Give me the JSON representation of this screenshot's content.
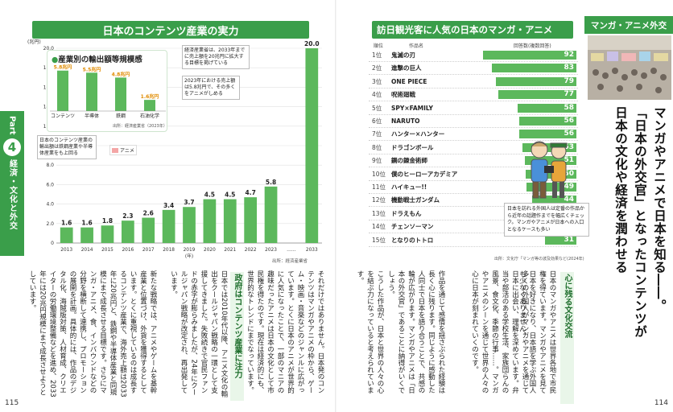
{
  "left_page": {
    "section_title": "日本のコンテンツ産業の実力",
    "part_label": "Part",
    "part_number": "4",
    "part_title": "経済・文化と外交",
    "y_unit": "(兆円)",
    "x_unit": "(年)",
    "source": "出所：経済産業省",
    "annotation_top": "経済産業省は、2033年までに売上額を20兆円に拡大する目標を掲げている",
    "annotation_mid": "2023年における売上額は5.8兆円で、その多くをアニメがしめる",
    "annotation_left": "日本のコンテンツ産業の輸出額は鉄鋼産業や半導体産業をも上回る",
    "legend_anime": "アニメ",
    "inset": {
      "title": "産業別の輸出額等規模感",
      "source": "出所：経済産業省（2023年）",
      "categories": [
        "コンテンツ",
        "半導体",
        "鉄鋼",
        "石油化学"
      ],
      "values_label": [
        "5.8兆円",
        "5.5兆円",
        "4.8兆円",
        "1.6兆円"
      ]
    },
    "subhead": "政府はコンテンツ産業に注力",
    "body_col1": "それだけではありません。日本発のコンテンツはマンガやアニメの枠から、ゲーム・映画・音楽などのジャンルに広がっています。とくに日本のアニメが世界的に人気になったことで、一部のマニアの趣味だったアニメは日本の文化として市民権を得たのです。現在は経済的にも、世界的なトレンドにまでなっています。",
    "body_col2": "日本では2010年代以降、アニメ文化の輸出をクールジャパン戦略の一環として支援してきました。失敗続きで官民ファンドの赤字が膨らみましたが、24年にクールジャパン戦略が改定され、再出発しています。",
    "body_col3": "新たな戦略では、アニメやゲームを基幹産業と位置づけ、外貨を獲得するとしています。とくに重視しているのは成長するコンテンツ産業で、海外売上額は2033年に20兆円と、鉄鋼や半導体産業と同規模にまで成長させる目標です。さらにマンガ・アニメ、食、インバウンドなどの分野を横断して連携し、プロモーションの展開を計画。具体的には、作品のデジタル化、海賊版対策、人材育成、クリエイターの労働環境整備などを進め、2033年には20兆円規模にまで成長させようとしています。",
    "page_number": "115"
  },
  "right_page": {
    "section_title": "訪日観光客に人気の日本のマンガ・アニメ",
    "col_rank": "順位",
    "col_title": "作品名",
    "col_votes": "回答数(複数回答)",
    "source": "出所：文化庁「マンガ等の波及効果など(2024年)",
    "illustration_caption": "日本を訪れる外国人は定番の作品から近年の話題作までを幅広くチェック。マンガやアニメが日本への入口となるケースも多い",
    "category_tab": "マンガ・アニメ外交",
    "headline_1": "マンガやアニメで日本を知る――。",
    "headline_2": "「日本の外交官」となったコンテンツが",
    "headline_3": "日本の文化や経済を潤わせる",
    "subhead": "心に残る文化交流",
    "body_col1": "日本のマンガやアニメは世界各地で市民権を得ています。マンガやアニメを見て日本を好きになり、日本語を学ぶ外国人も少なくありません。",
    "body_col2": "多くの外国人がマンガやアニメを通じて日本に出会い、理解を深めています。弁当や部活のある学校生活、家族団らんの風景、食文化、季節の行事……。マンガやアニメのシーンを通じて世界の人々の心に日本が刻まれていくのです。",
    "body_col3": "作品を通じて感情を揺さぶられた経験は長く心に残ります。同じように感動した人同士で日本を語り合うことで、共感の輪が広がります。マンガやアニメは「日本の外交官」であることに納得がいくでしょう。",
    "body_col4": "こうした作品が、日本と世界の人々の心を結ぶ力になっていると考えられています。",
    "page_number": "114"
  },
  "chart_data": [
    {
      "type": "bar",
      "title": "",
      "categories": [
        "2013",
        "2014",
        "2015",
        "2016",
        "2017",
        "2018",
        "2019",
        "2020",
        "2021",
        "2022",
        "2023",
        "……",
        "2033"
      ],
      "series": [
        {
          "name": "",
          "values": [
            1.6,
            1.6,
            1.8,
            2.3,
            2.6,
            3.4,
            3.7,
            4.5,
            4.5,
            4.7,
            5.8,
            null,
            20.0
          ]
        },
        {
          "name": "アニメ",
          "values": [
            0.3,
            0.4,
            0.6,
            1.0,
            1.2,
            1.6,
            1.7,
            2.0,
            2.1,
            2.4,
            2.9,
            null,
            null
          ]
        }
      ],
      "value_labels": [
        "1.6",
        "1.6",
        "1.8",
        "2.3",
        "2.6",
        "3.4",
        "3.7",
        "4.5",
        "4.5",
        "4.7",
        "5.8",
        "",
        "20.0"
      ],
      "y_ticks": [
        "0",
        "2.0",
        "4.0",
        "6.0",
        "8.0",
        "10.0",
        "12.0",
        "14.0",
        "16.0",
        "18.0",
        "20.0"
      ],
      "ylim": [
        0,
        20
      ],
      "colors": {
        "total": "#5cb85c",
        "anime": "#f4a6a6"
      }
    },
    {
      "type": "bar",
      "title": "",
      "orientation": "horizontal",
      "categories": [
        "鬼滅の刃",
        "進撃の巨人",
        "ONE PIECE",
        "呪術廻戦",
        "SPY×FAMILY",
        "NARUTO",
        "ハンター×ハンター",
        "ドラゴンボール",
        "鋼の錬金術師",
        "僕のヒーローアカデミア",
        "ハイキュー!!",
        "機動戦士ガンダム",
        "ドラえもん",
        "チェンソーマン",
        "となりのトトロ"
      ],
      "ranks": [
        "1位",
        "2位",
        "3位",
        "4位",
        "5位",
        "6位",
        "7位",
        "8位",
        "9位",
        "10位",
        "11位",
        "12位",
        "13位",
        "14位",
        "15位"
      ],
      "values": [
        92,
        83,
        79,
        77,
        58,
        56,
        56,
        53,
        51,
        50,
        49,
        44,
        40,
        38,
        31
      ],
      "xlim": [
        0,
        100
      ],
      "colors": {
        "bar": "#5cb85c"
      }
    }
  ]
}
